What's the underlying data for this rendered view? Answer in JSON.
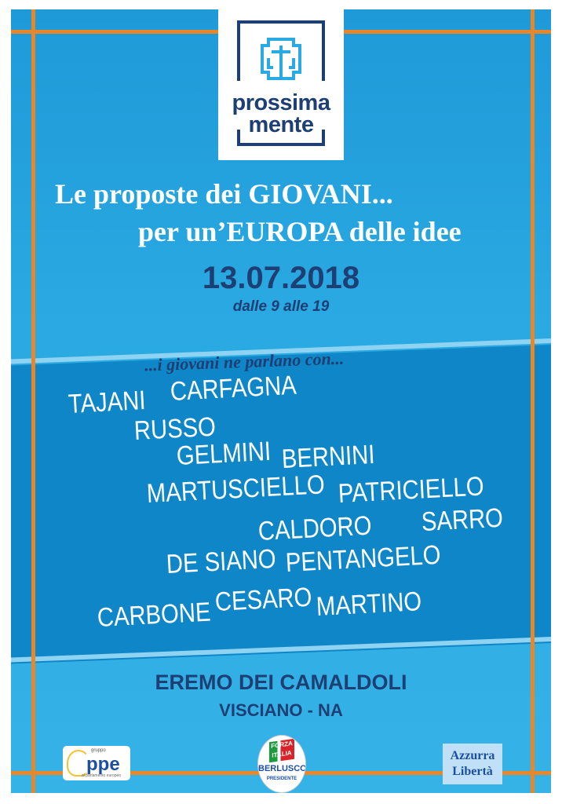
{
  "logo": {
    "line1": "prossima",
    "line2": "mente"
  },
  "headline": {
    "line1": "Le proposte dei GIOVANI...",
    "line2": "per un’EUROPA delle idee"
  },
  "event": {
    "date": "13.07.2018",
    "hours": "dalle 9 alle 19"
  },
  "speakers_intro": "...i giovani ne parlano con...",
  "speakers": [
    "TAJANI",
    "CARFAGNA",
    "RUSSO",
    "GELMINI",
    "BERNINI",
    "MARTUSCIELLO",
    "PATRICIELLO",
    "CALDORO",
    "SARRO",
    "DE SIANO",
    "PENTANGELO",
    "CARBONE",
    "CESARO",
    "MARTINO"
  ],
  "venue": {
    "name": "EREMO DEI CAMALDOLI",
    "place": "VISCIANO - NA"
  },
  "sponsors": {
    "ppe": {
      "small": "gruppo",
      "main": "ppe",
      "sub": "al parlamento europeo"
    },
    "forza_italia": {
      "flag": "FORZA ITALIA",
      "name": "BERLUSCONI",
      "sub": "PRESIDENTE"
    },
    "azzurra": {
      "line1": "Azzurra",
      "line2": "Libertà"
    }
  },
  "colors": {
    "background": "#2aa9e2",
    "band": "#0f86c8",
    "accent": "#e8862a",
    "navy": "#1d3f73"
  }
}
